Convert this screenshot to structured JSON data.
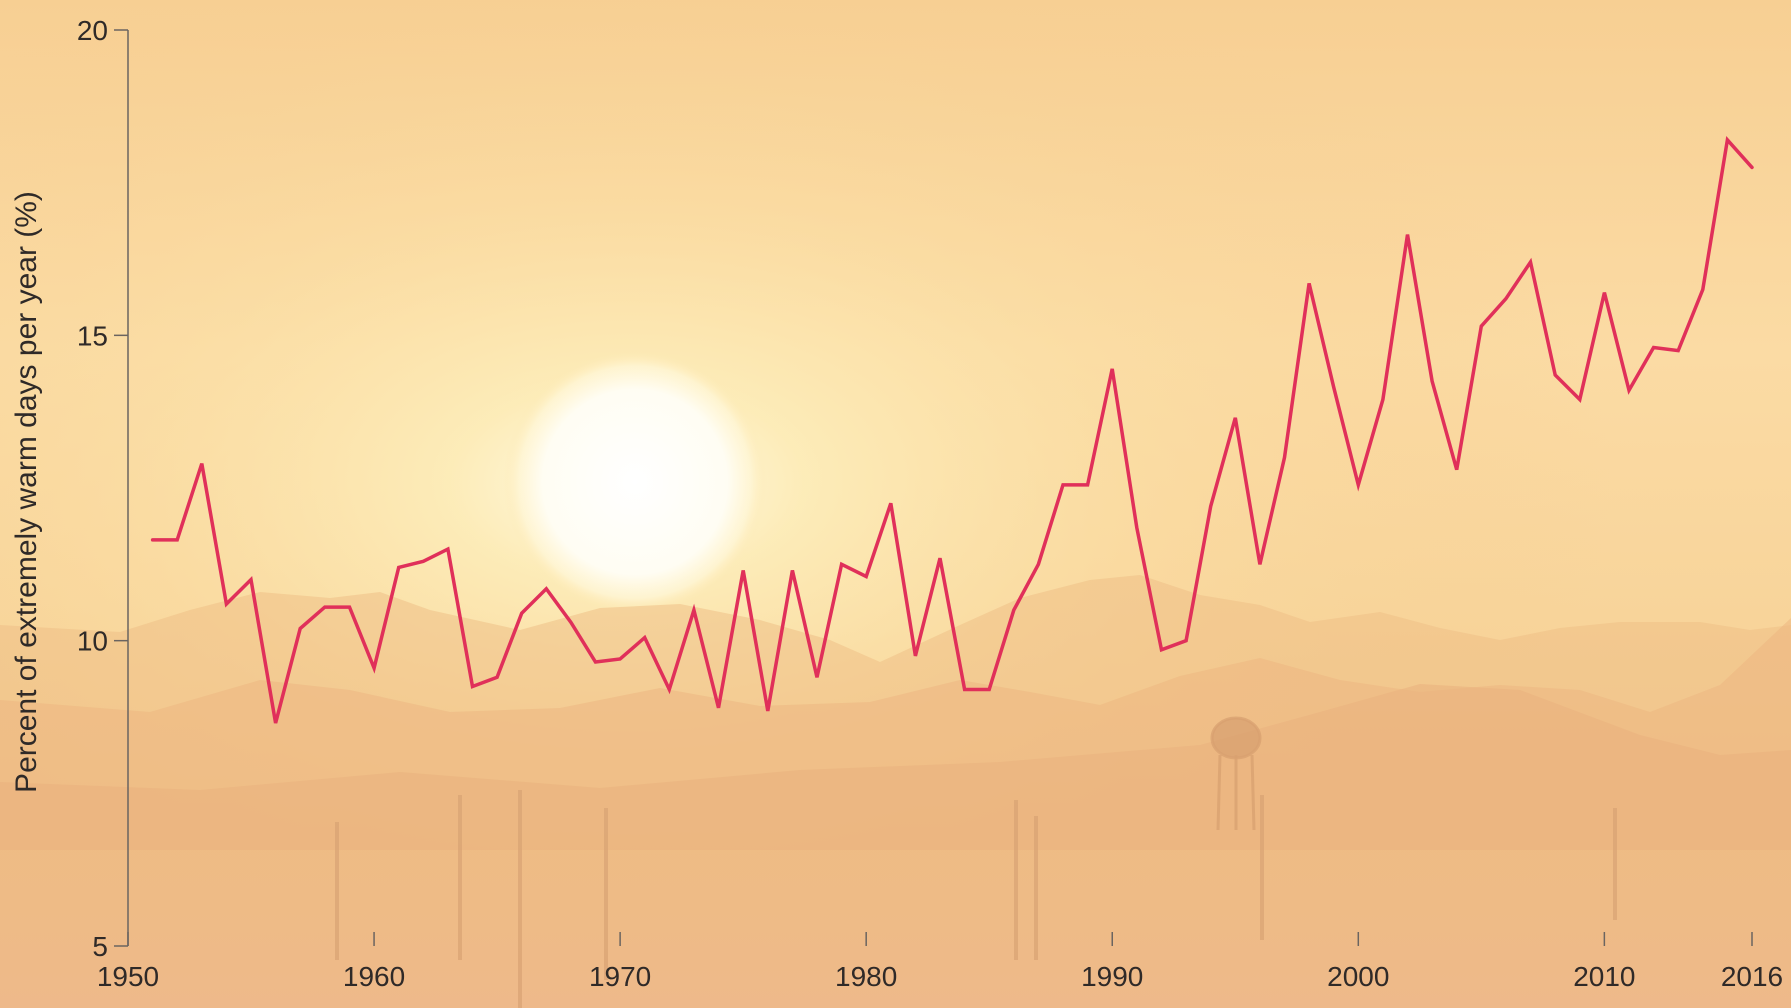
{
  "chart_data": {
    "type": "line",
    "title": "",
    "xlabel": "",
    "ylabel": "Percent of extremely warm days per year (%)",
    "xlim": [
      1950,
      2016
    ],
    "ylim": [
      5,
      20
    ],
    "x_ticks": [
      1950,
      1960,
      1970,
      1980,
      1990,
      2000,
      2010,
      2016
    ],
    "y_ticks": [
      5,
      10,
      15,
      20
    ],
    "grid": false,
    "legend": "none",
    "line_color": "#e0305a",
    "series": [
      {
        "x": [
          1951,
          1952,
          1953,
          1954,
          1955,
          1956,
          1957,
          1958,
          1959,
          1960,
          1961,
          1962,
          1963,
          1964,
          1965,
          1966,
          1967,
          1968,
          1969,
          1970,
          1971,
          1972,
          1973,
          1974,
          1975,
          1976,
          1977,
          1978,
          1979,
          1980,
          1981,
          1982,
          1983,
          1984,
          1985,
          1986,
          1987,
          1988,
          1989,
          1990,
          1991,
          1992,
          1993,
          1994,
          1995,
          1996,
          1997,
          1998,
          1999,
          2000,
          2001,
          2002,
          2003,
          2004,
          2005,
          2006,
          2007,
          2008,
          2009,
          2010,
          2011,
          2012,
          2013,
          2014,
          2015,
          2016
        ],
        "values": [
          11.65,
          11.65,
          12.9,
          10.6,
          11.0,
          8.65,
          10.2,
          10.55,
          10.55,
          9.55,
          11.2,
          11.3,
          11.5,
          9.25,
          9.4,
          10.45,
          10.85,
          10.3,
          9.65,
          9.7,
          10.05,
          9.2,
          10.5,
          8.9,
          11.15,
          8.85,
          11.15,
          9.4,
          11.25,
          11.05,
          12.25,
          9.75,
          11.35,
          9.2,
          9.2,
          10.5,
          11.25,
          12.55,
          12.55,
          14.45,
          11.85,
          9.85,
          10.0,
          12.2,
          13.65,
          11.25,
          13.0,
          15.85,
          14.15,
          12.55,
          13.95,
          16.65,
          14.25,
          12.8,
          15.15,
          15.6,
          16.2,
          14.35,
          13.95,
          15.7,
          14.1,
          14.8,
          14.75,
          15.75,
          18.2,
          17.75
        ]
      }
    ]
  }
}
